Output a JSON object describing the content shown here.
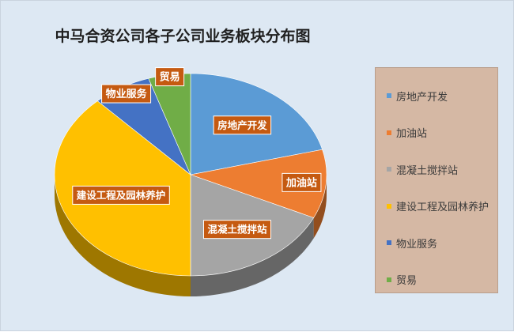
{
  "chart_data": {
    "type": "pie",
    "title": "中马合资公司各子公司业务板块分布图",
    "categories": [
      "房地产开发",
      "加油站",
      "混凝土搅拌站",
      "建设工程及园林养护",
      "物业服务",
      "贸易"
    ],
    "values": [
      21,
      11,
      18,
      38,
      7,
      5
    ],
    "colors": [
      "#5b9bd5",
      "#ed7d31",
      "#a5a5a5",
      "#ffc000",
      "#4472c4",
      "#70ad47"
    ],
    "legend_position": "right",
    "data_label_background": "#c55a11",
    "data_label_color": "#ffffff"
  }
}
